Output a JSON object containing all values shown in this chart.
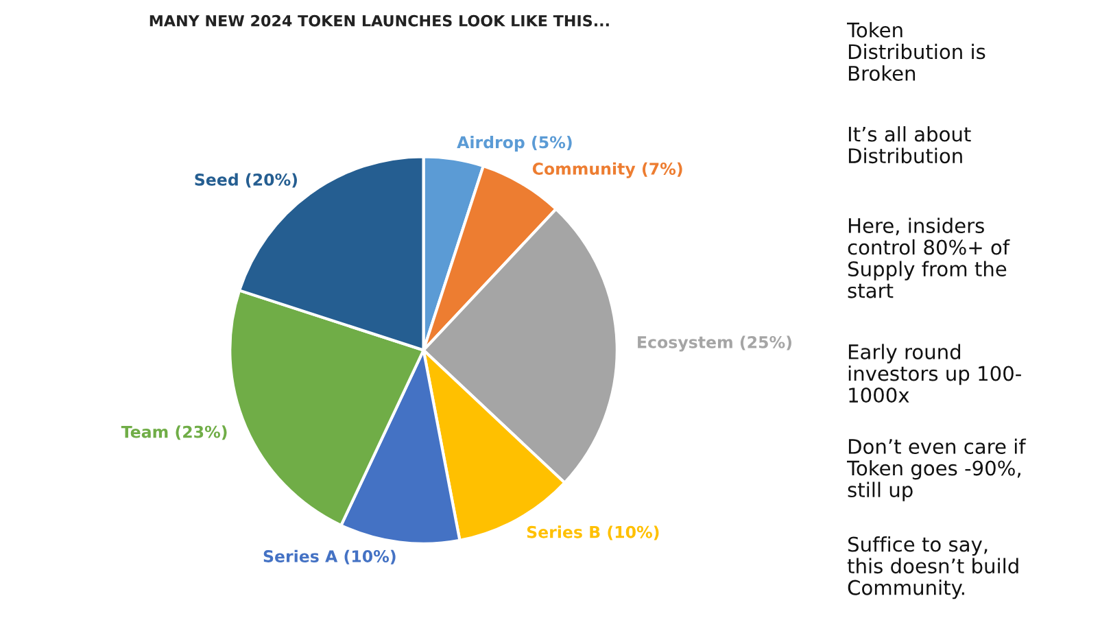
{
  "chart_data": {
    "type": "pie",
    "title": "MANY NEW 2024 TOKEN LAUNCHES LOOK LIKE THIS...",
    "categories": [
      "Airdrop (5%)",
      "Community (7%)",
      "Ecosystem (25%)",
      "Series B (10%)",
      "Series A (10%)",
      "Team (23%)",
      "Seed (20%)"
    ],
    "values": [
      5,
      7,
      25,
      10,
      10,
      23,
      20
    ],
    "colors": [
      "#5b9bd5",
      "#ed7d31",
      "#a5a5a5",
      "#ffc000",
      "#4472c4",
      "#70ad47",
      "#255e91"
    ],
    "annotations": [
      "Token\nDistribution is\nBroken",
      "It’s all about\nDistribution",
      "Here, insiders\ncontrol 80%+ of\nSupply from the\nstart",
      "Early round\ninvestors up 100-\n1000x",
      "Don’t even care if\nToken goes -90%,\nstill up",
      "Suffice to say,\nthis doesn’t build\nCommunity."
    ]
  }
}
